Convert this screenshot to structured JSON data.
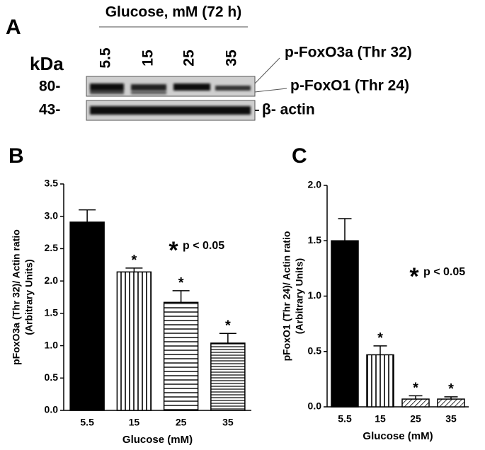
{
  "blot": {
    "panel": "A",
    "title": "Glucose, mM (72 h)",
    "kda_label": "kDa",
    "lanes": [
      "5.5",
      "15",
      "25",
      "35"
    ],
    "markers": [
      "80-",
      "43-"
    ],
    "bands": [
      "p-FoxO3a (Thr 32)",
      "p-FoxO1 (Thr 24)",
      "β- actin"
    ]
  },
  "chart_data": [
    {
      "type": "bar",
      "panel": "B",
      "xlabel": "Glucose (mM)",
      "ylabel": [
        "pFoxO3a (Thr 32)/ Actin ratio",
        "(Arbitrary Units)"
      ],
      "categories": [
        "5.5",
        "15",
        "25",
        "35"
      ],
      "values": [
        2.91,
        2.14,
        1.67,
        1.04
      ],
      "errors": [
        0.19,
        0.06,
        0.18,
        0.15
      ],
      "significance": [
        null,
        "*",
        "*",
        "*"
      ],
      "patterns": [
        "solid",
        "vertical",
        "horizontal",
        "horizontal-dense"
      ],
      "color": "#000000",
      "annotation_marker": "*",
      "annotation": "p < 0.05",
      "ylim": [
        0,
        3.5
      ],
      "yticks": [
        {
          "value": 0,
          "label": "0.0"
        },
        0.5,
        {
          "value": 1,
          "label": "1.0"
        },
        1.5,
        {
          "value": 2,
          "label": "2.0"
        },
        2.5,
        {
          "value": 3,
          "label": "3.0"
        },
        3.5
      ]
    },
    {
      "type": "bar",
      "panel": "C",
      "xlabel": "Glucose (mM)",
      "ylabel": [
        "pFoxO1  (Thr 24)/ Actin ratio",
        "(Arbitrary Units)"
      ],
      "categories": [
        "5.5",
        "15",
        "25",
        "35"
      ],
      "values": [
        1.5,
        0.47,
        0.07,
        0.07
      ],
      "errors": [
        0.2,
        0.08,
        0.03,
        0.02
      ],
      "significance": [
        null,
        "*",
        "*",
        "*"
      ],
      "patterns": [
        "solid",
        "vertical",
        "diagonal",
        "diagonal"
      ],
      "color": "#000000",
      "annotation_marker": "*",
      "annotation": "p < 0.05",
      "ylim": [
        0,
        2
      ],
      "yticks": [
        {
          "value": 0,
          "label": "0.0"
        },
        0.5,
        {
          "value": 1,
          "label": "1.0"
        },
        1.5,
        {
          "value": 2,
          "label": "2.0"
        }
      ]
    }
  ]
}
